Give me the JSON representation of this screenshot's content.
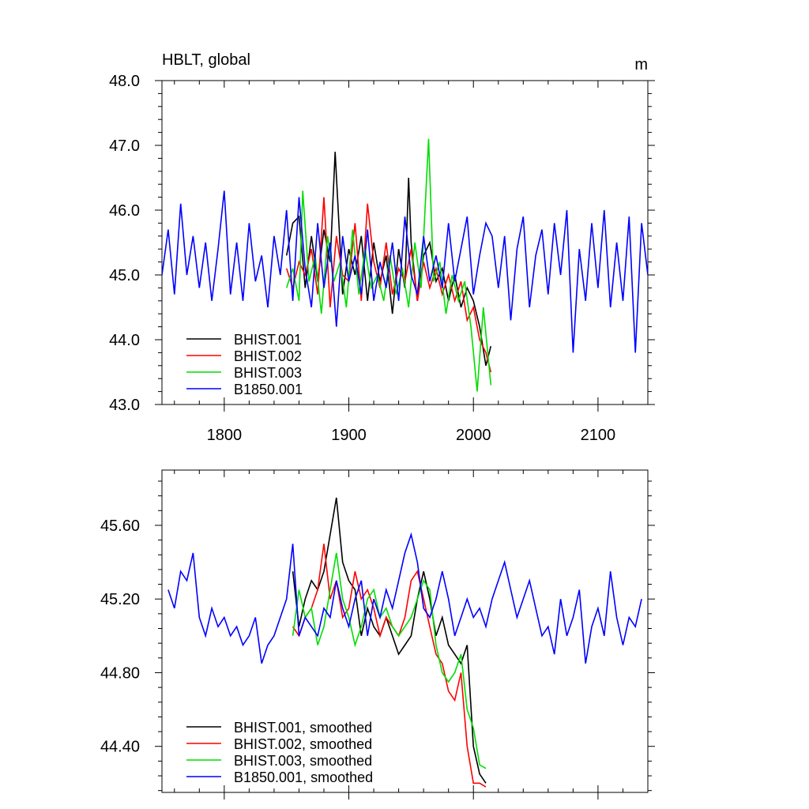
{
  "chart_data": [
    {
      "type": "line",
      "title": "HBLT, global",
      "units": "m",
      "xlim": [
        1750,
        2140
      ],
      "ylim": [
        43.0,
        48.0
      ],
      "x_ticks": [
        1800,
        1900,
        2000,
        2100
      ],
      "x_tick_labels": [
        "1800",
        "1900",
        "2000",
        "2100"
      ],
      "y_ticks": [
        43.0,
        44.0,
        45.0,
        46.0,
        47.0,
        48.0
      ],
      "y_tick_labels": [
        "43.0",
        "44.0",
        "45.0",
        "46.0",
        "47.0",
        "48.0"
      ],
      "legend_placement": "lower-left",
      "series": [
        {
          "name": "BHIST.001",
          "color": "#000000",
          "x": [
            1850,
            1855,
            1860,
            1865,
            1870,
            1875,
            1880,
            1885,
            1889,
            1895,
            1900,
            1905,
            1910,
            1915,
            1920,
            1925,
            1930,
            1935,
            1940,
            1945,
            1948,
            1950,
            1955,
            1960,
            1965,
            1970,
            1975,
            1980,
            1985,
            1990,
            1995,
            2000,
            2005,
            2010,
            2014
          ],
          "values": [
            45.3,
            45.8,
            45.9,
            44.8,
            45.6,
            44.9,
            45.7,
            45.2,
            46.9,
            44.7,
            45.4,
            45.0,
            45.6,
            44.6,
            45.5,
            44.9,
            45.3,
            44.4,
            45.4,
            44.8,
            46.5,
            45.5,
            44.6,
            45.3,
            45.5,
            44.9,
            45.1,
            44.6,
            45.0,
            44.5,
            44.8,
            44.6,
            44.2,
            43.6,
            43.9
          ]
        },
        {
          "name": "BHIST.002",
          "color": "#ff0000",
          "x": [
            1850,
            1855,
            1860,
            1865,
            1870,
            1875,
            1880,
            1885,
            1890,
            1895,
            1900,
            1905,
            1910,
            1915,
            1920,
            1925,
            1930,
            1935,
            1940,
            1945,
            1950,
            1955,
            1960,
            1965,
            1970,
            1975,
            1980,
            1985,
            1990,
            1995,
            2000,
            2005,
            2010,
            2014
          ],
          "values": [
            45.1,
            44.8,
            45.2,
            45.0,
            45.4,
            44.7,
            46.2,
            44.5,
            45.6,
            45.0,
            44.9,
            45.8,
            44.6,
            46.1,
            45.2,
            44.8,
            45.5,
            44.7,
            45.1,
            44.9,
            45.4,
            44.6,
            45.2,
            44.8,
            45.1,
            44.7,
            45.0,
            44.6,
            44.9,
            44.3,
            44.5,
            44.0,
            43.8,
            43.5
          ]
        },
        {
          "name": "BHIST.003",
          "color": "#00dd00",
          "x": [
            1850,
            1855,
            1860,
            1863,
            1868,
            1873,
            1878,
            1883,
            1888,
            1893,
            1898,
            1903,
            1908,
            1913,
            1918,
            1923,
            1928,
            1933,
            1938,
            1943,
            1948,
            1953,
            1958,
            1964,
            1968,
            1973,
            1978,
            1983,
            1988,
            1993,
            1998,
            2003,
            2008,
            2014
          ],
          "values": [
            44.8,
            45.1,
            44.6,
            46.3,
            44.9,
            45.3,
            44.4,
            45.6,
            44.9,
            45.2,
            44.5,
            45.7,
            44.7,
            45.4,
            44.8,
            45.0,
            44.6,
            45.3,
            44.7,
            45.1,
            44.5,
            45.5,
            44.8,
            47.1,
            44.9,
            45.2,
            44.4,
            45.0,
            44.6,
            44.9,
            44.2,
            43.2,
            44.5,
            43.3
          ]
        },
        {
          "name": "B1850.001",
          "color": "#0000ff",
          "x": [
            1750,
            1755,
            1760,
            1765,
            1770,
            1775,
            1780,
            1785,
            1790,
            1795,
            1800,
            1805,
            1810,
            1815,
            1820,
            1825,
            1830,
            1835,
            1840,
            1845,
            1850,
            1855,
            1860,
            1865,
            1870,
            1875,
            1880,
            1885,
            1890,
            1895,
            1900,
            1905,
            1910,
            1915,
            1920,
            1925,
            1930,
            1935,
            1940,
            1945,
            1950,
            1955,
            1960,
            1965,
            1970,
            1975,
            1980,
            1985,
            1990,
            1995,
            2000,
            2005,
            2010,
            2015,
            2020,
            2025,
            2030,
            2035,
            2040,
            2045,
            2050,
            2055,
            2060,
            2065,
            2070,
            2075,
            2080,
            2085,
            2090,
            2095,
            2100,
            2105,
            2110,
            2115,
            2120,
            2125,
            2130,
            2135,
            2140
          ],
          "values": [
            45.0,
            45.7,
            44.7,
            46.1,
            45.0,
            45.6,
            44.8,
            45.5,
            44.6,
            45.4,
            46.3,
            44.7,
            45.5,
            44.6,
            45.8,
            44.9,
            45.3,
            44.5,
            45.6,
            45.0,
            46.0,
            44.6,
            46.2,
            45.1,
            44.5,
            45.8,
            44.8,
            45.5,
            44.2,
            45.6,
            44.9,
            45.3,
            44.7,
            45.7,
            44.6,
            45.2,
            44.8,
            45.5,
            44.6,
            45.9,
            45.0,
            44.7,
            45.6,
            44.9,
            45.3,
            44.8,
            45.8,
            44.9,
            45.4,
            45.9,
            44.7,
            45.3,
            45.8,
            45.6,
            44.8,
            45.6,
            44.3,
            45.4,
            45.9,
            44.5,
            45.3,
            45.7,
            44.7,
            45.8,
            45.0,
            46.0,
            43.8,
            45.4,
            44.6,
            45.8,
            44.8,
            46.0,
            44.5,
            45.5,
            44.6,
            45.9,
            43.8,
            45.8,
            45.0
          ]
        }
      ]
    },
    {
      "type": "line",
      "xlim": [
        1750,
        2140
      ],
      "ylim": [
        44.15,
        45.9
      ],
      "y_ticks": [
        44.4,
        44.8,
        45.2,
        45.6
      ],
      "y_tick_labels": [
        "44.40",
        "44.80",
        "45.20",
        "45.60"
      ],
      "legend_placement": "lower-left",
      "series": [
        {
          "name": "BHIST.001, smoothed",
          "color": "#000000",
          "x": [
            1855,
            1860,
            1865,
            1870,
            1875,
            1880,
            1885,
            1890,
            1895,
            1900,
            1905,
            1910,
            1915,
            1920,
            1925,
            1930,
            1935,
            1940,
            1945,
            1950,
            1955,
            1960,
            1965,
            1970,
            1975,
            1980,
            1985,
            1990,
            1995,
            2000,
            2005,
            2010
          ],
          "values": [
            45.35,
            45.05,
            45.2,
            45.3,
            45.25,
            45.35,
            45.55,
            45.75,
            45.4,
            45.3,
            45.25,
            45.0,
            45.15,
            45.05,
            45.0,
            45.1,
            45.0,
            44.9,
            44.95,
            45.0,
            45.2,
            45.35,
            45.2,
            45.0,
            45.1,
            44.95,
            44.9,
            44.85,
            44.95,
            44.4,
            44.25,
            44.2
          ]
        },
        {
          "name": "BHIST.002, smoothed",
          "color": "#ff0000",
          "x": [
            1855,
            1860,
            1865,
            1870,
            1875,
            1880,
            1885,
            1890,
            1895,
            1900,
            1905,
            1910,
            1915,
            1920,
            1925,
            1930,
            1935,
            1940,
            1945,
            1950,
            1955,
            1960,
            1965,
            1970,
            1975,
            1980,
            1985,
            1990,
            1995,
            2000,
            2005,
            2010
          ],
          "values": [
            45.05,
            45.0,
            45.1,
            45.15,
            45.25,
            45.5,
            45.2,
            45.3,
            45.1,
            45.15,
            45.35,
            45.2,
            45.25,
            45.15,
            45.0,
            45.1,
            45.05,
            45.0,
            45.1,
            45.3,
            45.35,
            45.2,
            45.05,
            44.9,
            44.85,
            44.7,
            44.65,
            44.8,
            44.4,
            44.2,
            44.2,
            44.18
          ]
        },
        {
          "name": "BHIST.003, smoothed",
          "color": "#00dd00",
          "x": [
            1855,
            1860,
            1865,
            1870,
            1875,
            1880,
            1885,
            1890,
            1895,
            1900,
            1905,
            1910,
            1915,
            1920,
            1925,
            1930,
            1935,
            1940,
            1945,
            1950,
            1955,
            1960,
            1965,
            1970,
            1975,
            1980,
            1985,
            1990,
            1995,
            2000,
            2005,
            2010
          ],
          "values": [
            45.0,
            45.25,
            45.1,
            45.15,
            44.95,
            45.05,
            45.25,
            45.45,
            45.2,
            45.1,
            44.95,
            45.05,
            45.2,
            45.25,
            45.1,
            45.15,
            45.05,
            45.0,
            45.05,
            45.1,
            45.2,
            45.3,
            45.25,
            44.95,
            44.8,
            44.75,
            44.8,
            44.9,
            44.6,
            44.5,
            44.3,
            44.28
          ]
        },
        {
          "name": "B1850.001, smoothed",
          "color": "#0000ff",
          "x": [
            1755,
            1760,
            1765,
            1770,
            1775,
            1780,
            1785,
            1790,
            1795,
            1800,
            1805,
            1810,
            1815,
            1820,
            1825,
            1830,
            1835,
            1840,
            1845,
            1850,
            1855,
            1860,
            1865,
            1870,
            1875,
            1880,
            1885,
            1890,
            1895,
            1900,
            1905,
            1910,
            1915,
            1920,
            1925,
            1930,
            1935,
            1940,
            1945,
            1950,
            1955,
            1960,
            1965,
            1970,
            1975,
            1980,
            1985,
            1990,
            1995,
            2000,
            2005,
            2010,
            2015,
            2020,
            2025,
            2030,
            2035,
            2040,
            2045,
            2050,
            2055,
            2060,
            2065,
            2070,
            2075,
            2080,
            2085,
            2090,
            2095,
            2100,
            2105,
            2110,
            2115,
            2120,
            2125,
            2130,
            2135
          ],
          "values": [
            45.25,
            45.15,
            45.35,
            45.3,
            45.45,
            45.1,
            45.0,
            45.15,
            45.05,
            45.1,
            45.0,
            45.05,
            44.95,
            45.0,
            45.1,
            44.85,
            44.95,
            45.0,
            45.1,
            45.2,
            45.5,
            45.0,
            45.1,
            45.05,
            45.0,
            45.15,
            45.1,
            45.3,
            45.15,
            45.05,
            45.2,
            45.3,
            45.0,
            45.2,
            45.1,
            45.25,
            45.15,
            45.3,
            45.45,
            45.55,
            45.4,
            45.15,
            45.1,
            45.2,
            45.35,
            45.2,
            45.0,
            45.1,
            45.2,
            45.1,
            45.15,
            45.05,
            45.2,
            45.3,
            45.4,
            45.25,
            45.1,
            45.2,
            45.3,
            45.15,
            45.0,
            45.05,
            44.9,
            45.2,
            45.0,
            45.1,
            45.25,
            44.85,
            45.05,
            45.15,
            45.0,
            45.35,
            45.1,
            44.95,
            45.1,
            45.05,
            45.2
          ]
        }
      ]
    }
  ]
}
